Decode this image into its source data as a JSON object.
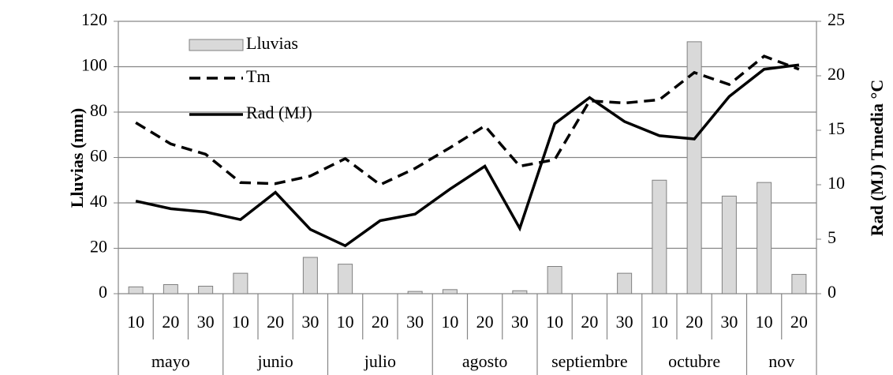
{
  "chart_data": {
    "type": "bar",
    "category_groups": [
      {
        "label": "mayo",
        "categories": [
          "10",
          "20",
          "30"
        ]
      },
      {
        "label": "junio",
        "categories": [
          "10",
          "20",
          "30"
        ]
      },
      {
        "label": "julio",
        "categories": [
          "10",
          "20",
          "30"
        ]
      },
      {
        "label": "agosto",
        "categories": [
          "10",
          "20",
          "30"
        ]
      },
      {
        "label": "septiembre",
        "categories": [
          "10",
          "20",
          "30"
        ]
      },
      {
        "label": "octubre",
        "categories": [
          "10",
          "20",
          "30"
        ]
      },
      {
        "label": "nov",
        "categories": [
          "10",
          "20"
        ]
      }
    ],
    "y_label": "Lluvias (mm)",
    "y2_label": "Rad (MJ) Tmedia °C",
    "ylim": [
      0,
      120
    ],
    "yticks": [
      0,
      20,
      40,
      60,
      80,
      100,
      120
    ],
    "y2lim": [
      0,
      25
    ],
    "y2ticks": [
      0,
      5,
      10,
      15,
      20,
      25
    ],
    "series": [
      {
        "name": "Lluvias",
        "type": "bar",
        "color": "#d9d9d9",
        "values": [
          3,
          4,
          3.3,
          9,
          0,
          16,
          13,
          0,
          1,
          1.8,
          0,
          1.3,
          12,
          0,
          9,
          50,
          111,
          43,
          49,
          8.5
        ]
      },
      {
        "name": "Tm",
        "type": "line",
        "axis": "y2",
        "color": "#000000",
        "style": "dashed",
        "values": [
          15.7,
          13.75,
          12.8,
          10.2,
          10.1,
          10.8,
          12.4,
          10.0,
          11.5,
          13.4,
          15.4,
          11.7,
          12.3,
          17.7,
          17.5,
          17.8,
          20.3,
          19.2,
          21.8,
          20.6
        ]
      },
      {
        "name": "Rad (MJ)",
        "type": "line",
        "axis": "y2",
        "color": "#000000",
        "style": "solid",
        "values": [
          8.5,
          7.8,
          7.5,
          6.8,
          9.3,
          5.9,
          4.4,
          6.7,
          7.3,
          9.6,
          11.7,
          6.0,
          15.6,
          18.0,
          15.8,
          14.5,
          14.2,
          18.1,
          20.6,
          21.0
        ]
      }
    ]
  }
}
